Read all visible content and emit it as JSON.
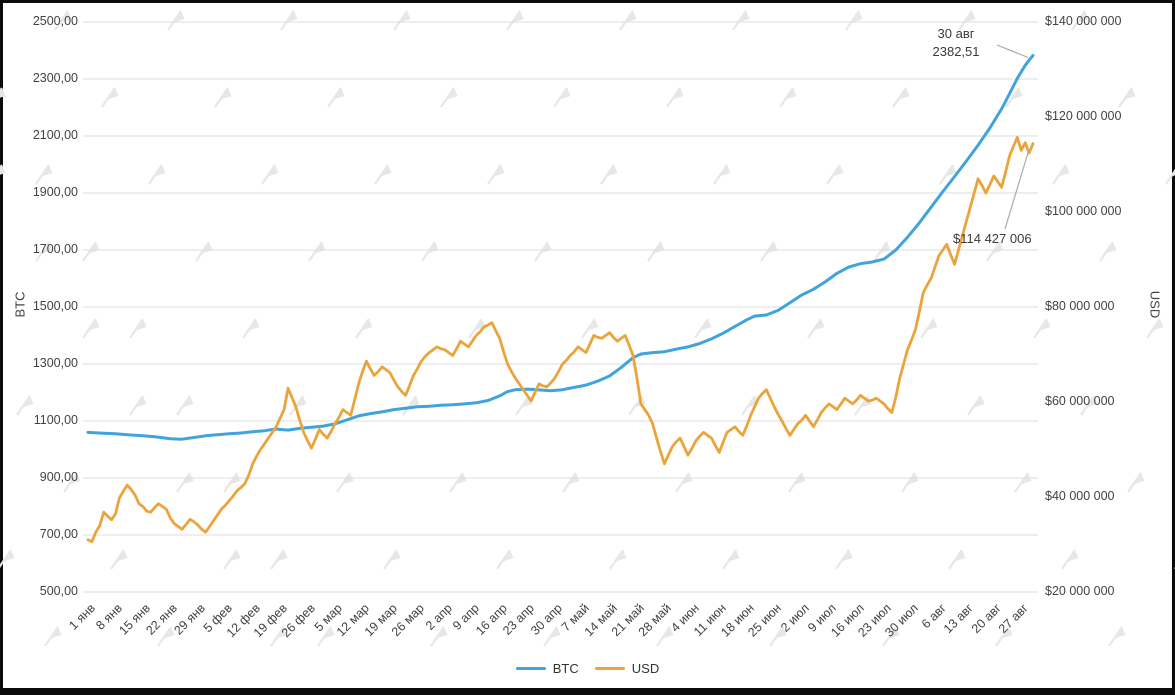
{
  "chart_data": {
    "type": "line",
    "title": "",
    "grid": "horizontal",
    "legend_position": "bottom",
    "watermark": {
      "icon": "forklog-flag-logo",
      "color": "#e7e7e7"
    },
    "left_axis": {
      "title": "BTC",
      "min": 500,
      "max": 2500,
      "tick_labels": [
        "2500,00",
        "2300,00",
        "2100,00",
        "1900,00",
        "1700,00",
        "1500,00",
        "1300,00",
        "1100,00",
        "900,00",
        "700,00",
        "500,00"
      ]
    },
    "right_axis": {
      "title": "USD",
      "min": 20000000,
      "max": 140000000,
      "tick_labels": [
        "$140 000 000",
        "$120 000 000",
        "$100 000 000",
        "$80 000 000",
        "$60 000 000",
        "$40 000 000",
        "$20 000 000"
      ]
    },
    "x_axis": {
      "tick_interval_days": 7,
      "range_days": [
        0,
        241
      ],
      "tick_labels": [
        "1 янв",
        "8 янв",
        "15 янв",
        "22 янв",
        "29 янв",
        "5 фев",
        "12 фев",
        "19 фев",
        "26 фев",
        "5 мар",
        "12 мар",
        "19 мар",
        "26 мар",
        "2 апр",
        "9 апр",
        "16 апр",
        "23 апр",
        "30 апр",
        "7 май",
        "14 май",
        "21 май",
        "28 май",
        "4 июн",
        "11 июн",
        "18 июн",
        "25 июн",
        "2 июл",
        "9 июл",
        "16 июл",
        "23 июл",
        "30 июл",
        "6 авг",
        "13 авг",
        "20 авг",
        "27 авг"
      ]
    },
    "legend": [
      "BTC",
      "USD"
    ],
    "annotations": {
      "btc": {
        "line1": "30 авг",
        "line2": "2382,51"
      },
      "usd": {
        "text": "$114 427 006"
      }
    },
    "series": [
      {
        "name": "BTC",
        "axis": "left",
        "color": "#41a3dc",
        "width": 3,
        "points": [
          [
            0,
            1060
          ],
          [
            4,
            1057
          ],
          [
            7,
            1055
          ],
          [
            10,
            1052
          ],
          [
            14,
            1048
          ],
          [
            17,
            1045
          ],
          [
            21,
            1038
          ],
          [
            24,
            1036
          ],
          [
            27,
            1042
          ],
          [
            30,
            1048
          ],
          [
            33,
            1052
          ],
          [
            36,
            1055
          ],
          [
            39,
            1058
          ],
          [
            42,
            1062
          ],
          [
            45,
            1066
          ],
          [
            48,
            1072
          ],
          [
            51,
            1068
          ],
          [
            54,
            1074
          ],
          [
            57,
            1078
          ],
          [
            60,
            1082
          ],
          [
            63,
            1090
          ],
          [
            66,
            1104
          ],
          [
            69,
            1118
          ],
          [
            72,
            1126
          ],
          [
            75,
            1132
          ],
          [
            78,
            1140
          ],
          [
            81,
            1145
          ],
          [
            84,
            1150
          ],
          [
            87,
            1152
          ],
          [
            90,
            1155
          ],
          [
            93,
            1157
          ],
          [
            96,
            1160
          ],
          [
            99,
            1164
          ],
          [
            102,
            1172
          ],
          [
            105,
            1188
          ],
          [
            107,
            1203
          ],
          [
            109,
            1210
          ],
          [
            112,
            1212
          ],
          [
            115,
            1209
          ],
          [
            118,
            1206
          ],
          [
            121,
            1210
          ],
          [
            124,
            1218
          ],
          [
            127,
            1226
          ],
          [
            130,
            1240
          ],
          [
            133,
            1258
          ],
          [
            136,
            1288
          ],
          [
            139,
            1322
          ],
          [
            141,
            1335
          ],
          [
            144,
            1340
          ],
          [
            147,
            1343
          ],
          [
            150,
            1352
          ],
          [
            153,
            1360
          ],
          [
            156,
            1372
          ],
          [
            159,
            1388
          ],
          [
            162,
            1408
          ],
          [
            165,
            1432
          ],
          [
            168,
            1455
          ],
          [
            170,
            1468
          ],
          [
            173,
            1472
          ],
          [
            176,
            1488
          ],
          [
            179,
            1515
          ],
          [
            182,
            1542
          ],
          [
            185,
            1562
          ],
          [
            188,
            1588
          ],
          [
            191,
            1618
          ],
          [
            194,
            1640
          ],
          [
            197,
            1652
          ],
          [
            200,
            1658
          ],
          [
            203,
            1668
          ],
          [
            206,
            1700
          ],
          [
            209,
            1745
          ],
          [
            212,
            1795
          ],
          [
            215,
            1850
          ],
          [
            218,
            1905
          ],
          [
            221,
            1958
          ],
          [
            224,
            2012
          ],
          [
            227,
            2068
          ],
          [
            230,
            2128
          ],
          [
            233,
            2195
          ],
          [
            235,
            2248
          ],
          [
            237,
            2302
          ],
          [
            239,
            2348
          ],
          [
            240,
            2366
          ],
          [
            241,
            2382.51
          ]
        ]
      },
      {
        "name": "USD",
        "axis": "right",
        "color": "#eba43b",
        "width": 2.8,
        "unit_scale": 1000000,
        "unit": "USD (values in millions)",
        "start_day": 0,
        "step": 1,
        "values": [
          31.0,
          30.6,
          32.6,
          34.0,
          36.8,
          36.0,
          35.2,
          36.4,
          39.8,
          41.2,
          42.5,
          41.6,
          40.4,
          38.6,
          38.0,
          37.0,
          36.8,
          37.8,
          38.6,
          38.0,
          37.4,
          35.6,
          34.4,
          33.8,
          33.2,
          34.2,
          35.3,
          34.8,
          34.1,
          33.2,
          32.6,
          33.8,
          35.0,
          36.2,
          37.4,
          38.2,
          39.2,
          40.2,
          41.3,
          42.0,
          42.8,
          44.6,
          47.0,
          48.6,
          50.0,
          51.2,
          52.4,
          53.6,
          54.8,
          56.6,
          58.4,
          62.9,
          61.0,
          59.0,
          56.2,
          53.6,
          51.8,
          50.3,
          52.2,
          54.2,
          53.2,
          52.4,
          53.8,
          55.4,
          56.8,
          58.4,
          57.8,
          57.2,
          60.4,
          63.8,
          66.4,
          68.6,
          67.0,
          65.6,
          66.4,
          67.4,
          66.8,
          66.2,
          64.6,
          63.2,
          62.2,
          61.4,
          63.4,
          65.6,
          67.0,
          68.6,
          69.6,
          70.4,
          71.0,
          71.6,
          71.2,
          71.0,
          70.4,
          69.8,
          71.2,
          72.8,
          72.2,
          71.6,
          72.8,
          74.0,
          74.8,
          75.8,
          76.2,
          76.7,
          75.0,
          73.4,
          70.6,
          68.0,
          66.4,
          65.0,
          63.8,
          62.6,
          61.4,
          60.2,
          62.0,
          63.8,
          63.4,
          63.2,
          64.0,
          65.0,
          66.4,
          68.0,
          68.8,
          69.8,
          70.6,
          71.6,
          71.0,
          70.4,
          72.2,
          74.0,
          73.6,
          73.4,
          74.0,
          74.6,
          73.6,
          72.8,
          73.4,
          74.0,
          72.0,
          69.8,
          65.0,
          59.6,
          58.4,
          57.2,
          55.4,
          52.4,
          49.6,
          47.0,
          48.8,
          50.6,
          51.6,
          52.4,
          50.6,
          48.8,
          50.2,
          51.8,
          52.8,
          53.6,
          53.0,
          52.4,
          50.8,
          49.4,
          51.6,
          53.6,
          54.2,
          54.8,
          53.8,
          53.0,
          55.0,
          57.2,
          59.0,
          60.8,
          61.8,
          62.6,
          60.8,
          59.0,
          57.4,
          56.0,
          54.4,
          53.0,
          54.2,
          55.4,
          56.2,
          57.2,
          56.0,
          54.8,
          56.2,
          57.8,
          58.8,
          59.6,
          59.0,
          58.4,
          59.6,
          60.8,
          60.2,
          59.6,
          60.4,
          61.4,
          60.8,
          60.2,
          60.4,
          60.8,
          60.2,
          59.6,
          58.6,
          57.8,
          61.0,
          65.0,
          68.0,
          71.0,
          73.0,
          75.2,
          79.0,
          83.0,
          84.6,
          86.0,
          88.4,
          90.8,
          92.0,
          93.2,
          91.0,
          89.0,
          92.0,
          95.0,
          98.0,
          101.0,
          104.0,
          107.0,
          105.6,
          104.0,
          105.8,
          107.6,
          106.4,
          105.2,
          108.4,
          111.8,
          113.8,
          115.7,
          113.0,
          114.6,
          112.4,
          114.427
        ]
      }
    ],
    "colors": {
      "gridline": "#dcdcdc",
      "callout_line": "#a9a9a9",
      "tick_text": "#424242"
    }
  }
}
